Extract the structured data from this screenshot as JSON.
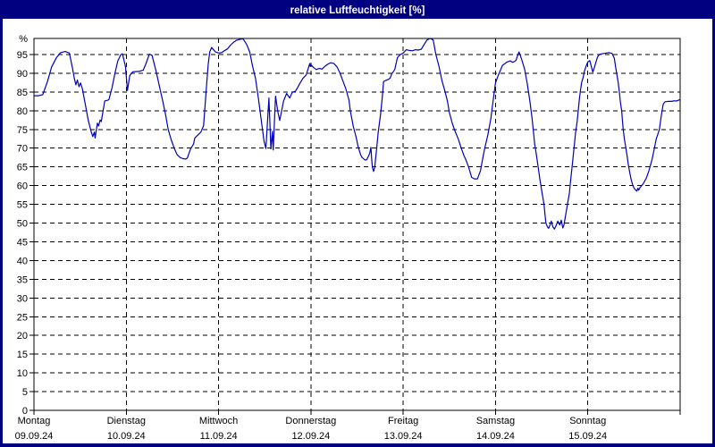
{
  "window": {
    "title": "relative Luftfeuchtigkeit [%]",
    "titlebar_color": "#000080",
    "border_color": "#000080",
    "background_color": "#ffffff",
    "title_text_color": "#ffffff"
  },
  "chart_data": {
    "type": "line",
    "title": "relative Luftfeuchtigkeit [%]",
    "ylabel": "%",
    "xlabel": "",
    "ylim": [
      0,
      100
    ],
    "xlim_hours": [
      0,
      168
    ],
    "grid": "dashed-black",
    "legend": "none",
    "line_color": "#0000bb",
    "y_ticks": [
      0,
      5,
      10,
      15,
      20,
      25,
      30,
      35,
      40,
      45,
      50,
      55,
      60,
      65,
      70,
      75,
      80,
      85,
      90,
      95
    ],
    "x_axis_days": [
      {
        "label": "Montag",
        "date": "09.09.24"
      },
      {
        "label": "Dienstag",
        "date": "10.09.24"
      },
      {
        "label": "Mittwoch",
        "date": "11.09.24"
      },
      {
        "label": "Donnerstag",
        "date": "12.09.24"
      },
      {
        "label": "Freitag",
        "date": "13.09.24"
      },
      {
        "label": "Samstag",
        "date": "14.09.24"
      },
      {
        "label": "Sonntag",
        "date": "15.09.24"
      }
    ],
    "series": [
      {
        "name": "relative Luftfeuchtigkeit",
        "unit": "%",
        "x_unit": "hours_from_monday_00",
        "points": [
          [
            0,
            84
          ],
          [
            1.2,
            84
          ],
          [
            2.3,
            84.3
          ],
          [
            3.5,
            87.8
          ],
          [
            4.6,
            91.7
          ],
          [
            5.8,
            94.1
          ],
          [
            6.9,
            95.5
          ],
          [
            8.1,
            95.8
          ],
          [
            9.2,
            95.4
          ],
          [
            10,
            91.5
          ],
          [
            10.5,
            88.6
          ],
          [
            10.9,
            86.9
          ],
          [
            11.3,
            88.2
          ],
          [
            11.7,
            86.4
          ],
          [
            12.1,
            87.4
          ],
          [
            12.6,
            85.8
          ],
          [
            13.4,
            81.4
          ],
          [
            14.1,
            77.5
          ],
          [
            14.9,
            74.3
          ],
          [
            15.3,
            73.1
          ],
          [
            15.7,
            74.3
          ],
          [
            15.9,
            72.7
          ],
          [
            16.5,
            76.7
          ],
          [
            16.8,
            75.9
          ],
          [
            17.2,
            77.5
          ],
          [
            17.5,
            77.1
          ],
          [
            18,
            80.2
          ],
          [
            18.4,
            82.6
          ],
          [
            19.2,
            82.8
          ],
          [
            19.5,
            83
          ],
          [
            20.3,
            86.2
          ],
          [
            21.1,
            90.2
          ],
          [
            21.8,
            93.3
          ],
          [
            22.6,
            95
          ],
          [
            23,
            95.2
          ],
          [
            23.8,
            91.8
          ],
          [
            24.3,
            85.4
          ],
          [
            24.9,
            89.4
          ],
          [
            25.7,
            90.4
          ],
          [
            27.2,
            90.5
          ],
          [
            28.4,
            90.8
          ],
          [
            29.1,
            92.5
          ],
          [
            30,
            95.1
          ],
          [
            30.7,
            94.8
          ],
          [
            31.8,
            90.3
          ],
          [
            32.6,
            86.6
          ],
          [
            33.4,
            83
          ],
          [
            34.2,
            79
          ],
          [
            34.9,
            75
          ],
          [
            35.7,
            72.2
          ],
          [
            36.5,
            69.9
          ],
          [
            37.2,
            68.3
          ],
          [
            38,
            67.5
          ],
          [
            38.8,
            67.2
          ],
          [
            39.5,
            67.1
          ],
          [
            39.9,
            67.4
          ],
          [
            40.7,
            69.8
          ],
          [
            41.5,
            71.1
          ],
          [
            41.8,
            72.7
          ],
          [
            42.6,
            73.5
          ],
          [
            43.4,
            74.3
          ],
          [
            44.1,
            76
          ],
          [
            44.5,
            81.5
          ],
          [
            44.9,
            87
          ],
          [
            45.3,
            92.5
          ],
          [
            45.7,
            95.7
          ],
          [
            46.2,
            96.9
          ],
          [
            46.5,
            96.5
          ],
          [
            47.2,
            95.7
          ],
          [
            48,
            95.4
          ],
          [
            48.8,
            95.5
          ],
          [
            49.5,
            96
          ],
          [
            50.3,
            96.5
          ],
          [
            51.1,
            97.5
          ],
          [
            51.9,
            98.3
          ],
          [
            52.6,
            98.8
          ],
          [
            53.4,
            99
          ],
          [
            54.2,
            99.2
          ],
          [
            54.5,
            99
          ],
          [
            55.3,
            97.7
          ],
          [
            56.1,
            95.7
          ],
          [
            56.8,
            92.1
          ],
          [
            57.6,
            88.6
          ],
          [
            58.4,
            83
          ],
          [
            59.1,
            77.5
          ],
          [
            59.8,
            71.9
          ],
          [
            60.3,
            69.9
          ],
          [
            61.1,
            83.4
          ],
          [
            61.6,
            69.8
          ],
          [
            62,
            74.5
          ],
          [
            62.2,
            69.5
          ],
          [
            62.8,
            83.9
          ],
          [
            63.4,
            79.8
          ],
          [
            63.9,
            77.4
          ],
          [
            64.9,
            82.6
          ],
          [
            65.7,
            84.6
          ],
          [
            66.5,
            83.4
          ],
          [
            67.2,
            85
          ],
          [
            68,
            85.2
          ],
          [
            68.5,
            86.1
          ],
          [
            69.2,
            87.4
          ],
          [
            69.9,
            88.6
          ],
          [
            70.8,
            89.6
          ],
          [
            71.7,
            92.6
          ],
          [
            71.8,
            91.9
          ],
          [
            72,
            92.3
          ],
          [
            72.6,
            91.6
          ],
          [
            73.4,
            91
          ],
          [
            74.2,
            91.3
          ],
          [
            74.9,
            91.1
          ],
          [
            75.7,
            91.9
          ],
          [
            76.5,
            92.5
          ],
          [
            77.2,
            92.8
          ],
          [
            78,
            92.6
          ],
          [
            78.8,
            91.7
          ],
          [
            79.5,
            90.2
          ],
          [
            80.3,
            88
          ],
          [
            81.1,
            85.8
          ],
          [
            81.9,
            82.8
          ],
          [
            82.2,
            80.2
          ],
          [
            83,
            75.9
          ],
          [
            83.8,
            72.8
          ],
          [
            84.2,
            70.7
          ],
          [
            84.9,
            68.3
          ],
          [
            85.3,
            67.5
          ],
          [
            86.1,
            66.8
          ],
          [
            86.5,
            66.9
          ],
          [
            87,
            67.9
          ],
          [
            87.3,
            68.7
          ],
          [
            87.6,
            70.2
          ],
          [
            87.8,
            67
          ],
          [
            88,
            64.8
          ],
          [
            88.3,
            63.8
          ],
          [
            88.6,
            65
          ],
          [
            89.1,
            69.8
          ],
          [
            89.5,
            74.3
          ],
          [
            90.1,
            79
          ],
          [
            90.5,
            83
          ],
          [
            90.9,
            87.8
          ],
          [
            91.5,
            88.1
          ],
          [
            92.2,
            88.4
          ],
          [
            92.6,
            88.7
          ],
          [
            93,
            89.8
          ],
          [
            93.8,
            91
          ],
          [
            94.5,
            94.2
          ],
          [
            95.3,
            95
          ],
          [
            96,
            95.4
          ],
          [
            96.8,
            96.3
          ],
          [
            97.6,
            96.1
          ],
          [
            98.4,
            96
          ],
          [
            99.2,
            96.3
          ],
          [
            99.9,
            96.2
          ],
          [
            100.7,
            96.4
          ],
          [
            101.5,
            97.8
          ],
          [
            102.2,
            98.9
          ],
          [
            103,
            99.3
          ],
          [
            103.8,
            98.9
          ],
          [
            104.5,
            95
          ],
          [
            105.3,
            91.8
          ],
          [
            106.1,
            87.9
          ],
          [
            106.8,
            85.4
          ],
          [
            107.5,
            82.6
          ],
          [
            108,
            79.5
          ],
          [
            108.8,
            76.5
          ],
          [
            109.5,
            74.5
          ],
          [
            110.3,
            72.5
          ],
          [
            111.1,
            70
          ],
          [
            111.8,
            68
          ],
          [
            112.2,
            67.1
          ],
          [
            113,
            65
          ],
          [
            113.8,
            62.2
          ],
          [
            114.5,
            61.8
          ],
          [
            115.3,
            61.8
          ],
          [
            116.1,
            64
          ],
          [
            116.8,
            68
          ],
          [
            117.2,
            70
          ],
          [
            118,
            73.5
          ],
          [
            118.8,
            78
          ],
          [
            119.1,
            80.6
          ],
          [
            120,
            87.4
          ],
          [
            120.7,
            89.4
          ],
          [
            121.8,
            92.1
          ],
          [
            123,
            93
          ],
          [
            123.8,
            93.3
          ],
          [
            124.5,
            92.9
          ],
          [
            125.3,
            93.4
          ],
          [
            126.1,
            95.7
          ],
          [
            126.8,
            93.7
          ],
          [
            127.6,
            91
          ],
          [
            128.3,
            87
          ],
          [
            129,
            82
          ],
          [
            129.5,
            78
          ],
          [
            129.8,
            75
          ],
          [
            130.2,
            71
          ],
          [
            130.6,
            68.5
          ],
          [
            131,
            65.5
          ],
          [
            131.5,
            62
          ],
          [
            131.8,
            60
          ],
          [
            132.2,
            57.5
          ],
          [
            132.6,
            55
          ],
          [
            132.9,
            52
          ],
          [
            133.1,
            50
          ],
          [
            133.5,
            49
          ],
          [
            133.8,
            48.6
          ],
          [
            134.2,
            49.5
          ],
          [
            134.5,
            50.5
          ],
          [
            134.9,
            49
          ],
          [
            135.3,
            48.4
          ],
          [
            135.7,
            49.2
          ],
          [
            136.2,
            50.5
          ],
          [
            136.7,
            49.5
          ],
          [
            137.1,
            50.8
          ],
          [
            137.5,
            48.7
          ],
          [
            137.8,
            49.5
          ],
          [
            138.2,
            52
          ],
          [
            138.7,
            55
          ],
          [
            139.2,
            58
          ],
          [
            139.5,
            61
          ],
          [
            139.9,
            65
          ],
          [
            140.2,
            68
          ],
          [
            140.5,
            71
          ],
          [
            140.8,
            74
          ],
          [
            141.2,
            77
          ],
          [
            141.5,
            80
          ],
          [
            141.8,
            83
          ],
          [
            142.1,
            85.5
          ],
          [
            142.4,
            87.5
          ],
          [
            142.8,
            89
          ],
          [
            143.1,
            90.5
          ],
          [
            143.5,
            91.8
          ],
          [
            144,
            93
          ],
          [
            144.5,
            93.4
          ],
          [
            144.9,
            91.8
          ],
          [
            145.3,
            90.3
          ],
          [
            145.7,
            91.5
          ],
          [
            146.1,
            93
          ],
          [
            146.5,
            94.3
          ],
          [
            147,
            95
          ],
          [
            147.6,
            95.2
          ],
          [
            148.4,
            95.3
          ],
          [
            149.5,
            95.5
          ],
          [
            150.3,
            95.3
          ],
          [
            150.9,
            94
          ],
          [
            151.2,
            91.8
          ],
          [
            151.5,
            90
          ],
          [
            151.9,
            87.5
          ],
          [
            152.2,
            85
          ],
          [
            152.5,
            82
          ],
          [
            152.8,
            80
          ],
          [
            153,
            77.5
          ],
          [
            153.2,
            75
          ],
          [
            153.5,
            72.5
          ],
          [
            153.9,
            70
          ],
          [
            154.2,
            68
          ],
          [
            154.5,
            65.8
          ],
          [
            154.9,
            63.5
          ],
          [
            155.3,
            61.5
          ],
          [
            155.7,
            60
          ],
          [
            156.1,
            59.2
          ],
          [
            156.5,
            58.8
          ],
          [
            156.7,
            58.5
          ],
          [
            157,
            59.3
          ],
          [
            157.2,
            58.8
          ],
          [
            157.6,
            59.5
          ],
          [
            158.4,
            60.5
          ],
          [
            159.2,
            62
          ],
          [
            159.9,
            64
          ],
          [
            160.7,
            67
          ],
          [
            161.3,
            70
          ],
          [
            161.8,
            72.5
          ],
          [
            162.6,
            75
          ],
          [
            163,
            78
          ],
          [
            163.3,
            80
          ],
          [
            163.6,
            81.8
          ],
          [
            164.1,
            82.4
          ],
          [
            164.9,
            82.5
          ],
          [
            165.7,
            82.5
          ],
          [
            166.4,
            82.6
          ],
          [
            167.1,
            82.6
          ],
          [
            168,
            83
          ]
        ]
      }
    ]
  }
}
